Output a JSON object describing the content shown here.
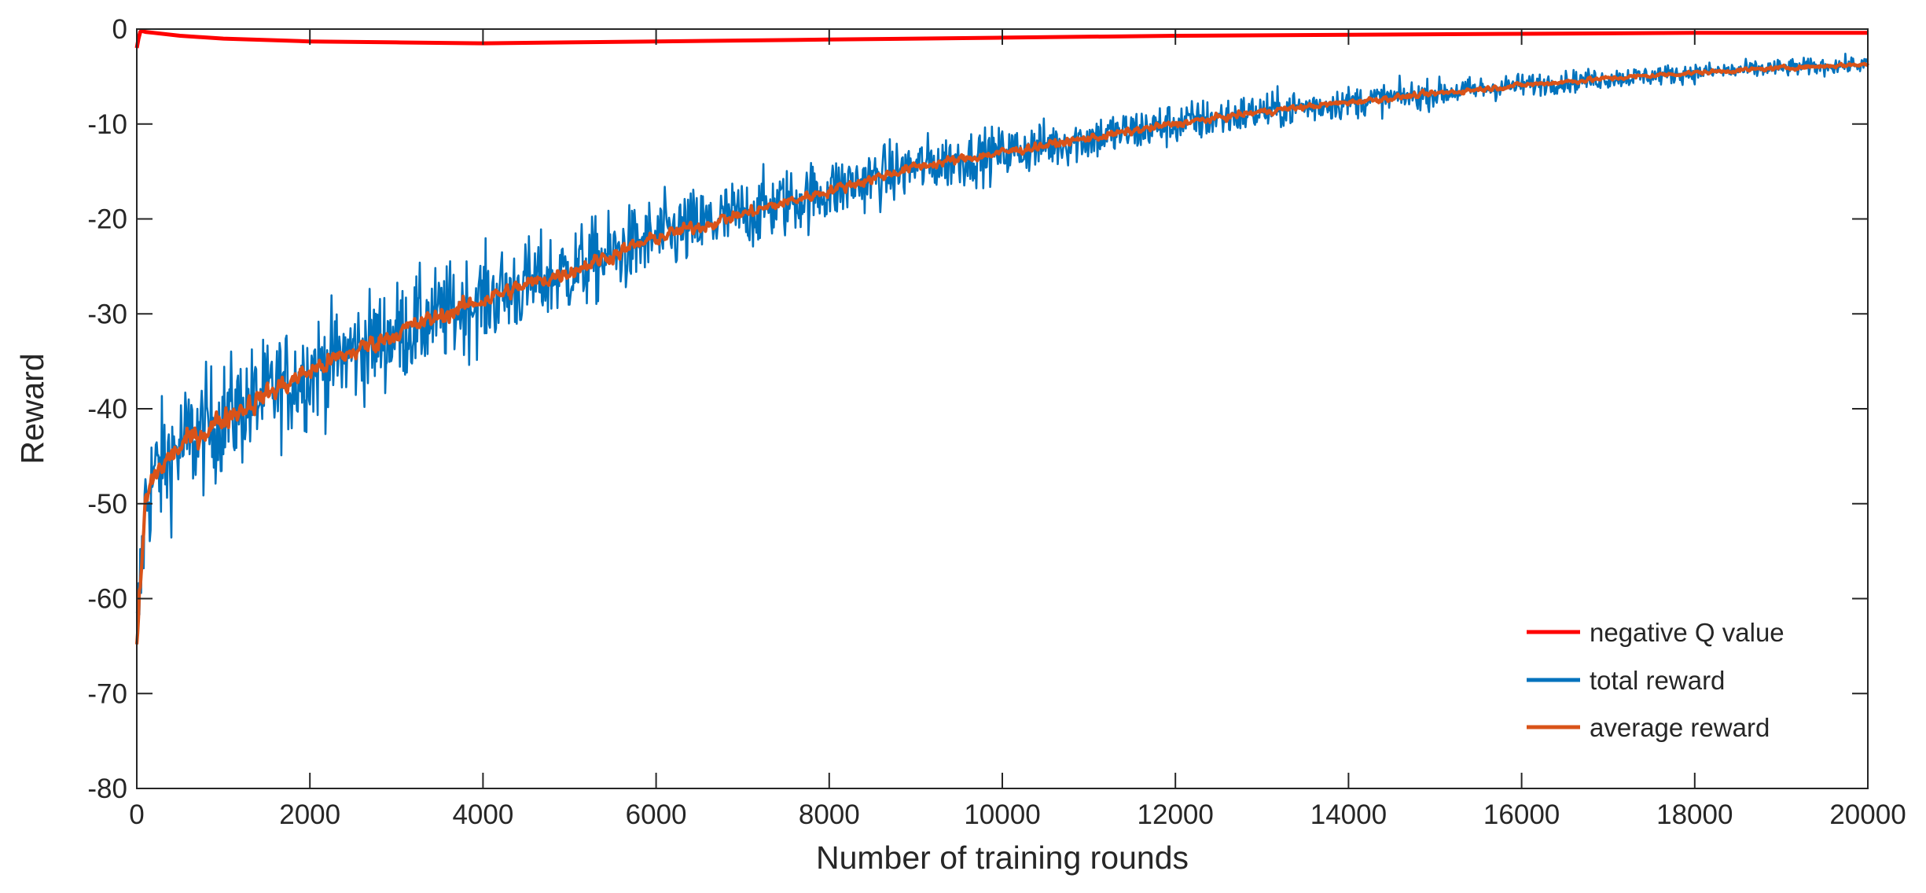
{
  "chart_data": {
    "type": "line",
    "title": "",
    "xlabel": "Number of training rounds",
    "ylabel": "Reward",
    "xlim": [
      0,
      20000
    ],
    "ylim": [
      -80,
      0
    ],
    "x_ticks": [
      0,
      2000,
      4000,
      6000,
      8000,
      10000,
      12000,
      14000,
      16000,
      18000,
      20000
    ],
    "x_tick_labels": [
      "0",
      "2000",
      "4000",
      "6000",
      "8000",
      "10000",
      "12000",
      "14000",
      "16000",
      "18000",
      "20000"
    ],
    "y_ticks": [
      0,
      -10,
      -20,
      -30,
      -40,
      -50,
      -60,
      -70,
      -80
    ],
    "y_tick_labels": [
      "0",
      "-10",
      "-20",
      "-30",
      "-40",
      "-50",
      "-60",
      "-70",
      "-80"
    ],
    "grid": false,
    "box": true,
    "legend_position": "bottom-right",
    "series": [
      {
        "name": "negative Q value",
        "color": "#FF0000",
        "x": [
          0,
          20,
          40,
          60,
          100,
          200,
          500,
          1000,
          2000,
          3000,
          4000,
          5000,
          6000,
          8000,
          10000,
          12000,
          14000,
          16000,
          18000,
          20000
        ],
        "y": [
          -2.0,
          -1.0,
          -0.3,
          -0.2,
          -0.3,
          -0.4,
          -0.7,
          -1.0,
          -1.3,
          -1.4,
          -1.5,
          -1.4,
          -1.3,
          -1.1,
          -0.9,
          -0.7,
          -0.6,
          -0.5,
          -0.4,
          -0.4
        ]
      },
      {
        "name": "total reward",
        "color": "#0072BD",
        "trend_x": [
          0,
          100,
          200,
          500,
          1000,
          1500,
          2000,
          3000,
          4000,
          5000,
          6000,
          7000,
          8000,
          9000,
          10000,
          11000,
          12000,
          13000,
          14000,
          15000,
          16000,
          17000,
          18000,
          19000,
          20000
        ],
        "trend_y": [
          -65,
          -50,
          -47,
          -44,
          -41,
          -38.5,
          -36,
          -32,
          -28.5,
          -25.5,
          -22,
          -19.5,
          -17,
          -14.5,
          -13,
          -11.5,
          -10,
          -8.7,
          -7.7,
          -6.8,
          -5.9,
          -5.2,
          -4.6,
          -4.1,
          -3.7
        ],
        "noise_amplitude": [
          9,
          9,
          8.5,
          8.5,
          8,
          7.5,
          7.5,
          7,
          6.5,
          6,
          5.5,
          5,
          4.5,
          4,
          3.5,
          3.2,
          3.0,
          2.6,
          2.2,
          1.9,
          1.6,
          1.4,
          1.3,
          1.2,
          1.1
        ],
        "min": -74.5,
        "max": -2.5,
        "points": 2000
      },
      {
        "name": "average reward",
        "color": "#D95319",
        "trend_x": [
          0,
          100,
          200,
          500,
          1000,
          1500,
          2000,
          3000,
          4000,
          5000,
          6000,
          7000,
          8000,
          9000,
          10000,
          11000,
          12000,
          13000,
          14000,
          15000,
          16000,
          17000,
          18000,
          19000,
          20000
        ],
        "trend_y": [
          -65,
          -50,
          -47,
          -44,
          -41,
          -38.5,
          -36,
          -32,
          -28.5,
          -25.5,
          -22,
          -19.5,
          -17,
          -14.5,
          -13,
          -11.5,
          -10,
          -8.7,
          -7.7,
          -6.8,
          -5.9,
          -5.2,
          -4.6,
          -4.1,
          -3.7
        ],
        "noise_amplitude": [
          3.5,
          3.5,
          3.2,
          3.0,
          2.8,
          2.6,
          2.5,
          2.3,
          2.1,
          1.9,
          1.7,
          1.5,
          1.3,
          1.2,
          1.1,
          1.0,
          0.9,
          0.8,
          0.7,
          0.7,
          0.6,
          0.6,
          0.5,
          0.5,
          0.5
        ],
        "points": 2000
      }
    ]
  }
}
